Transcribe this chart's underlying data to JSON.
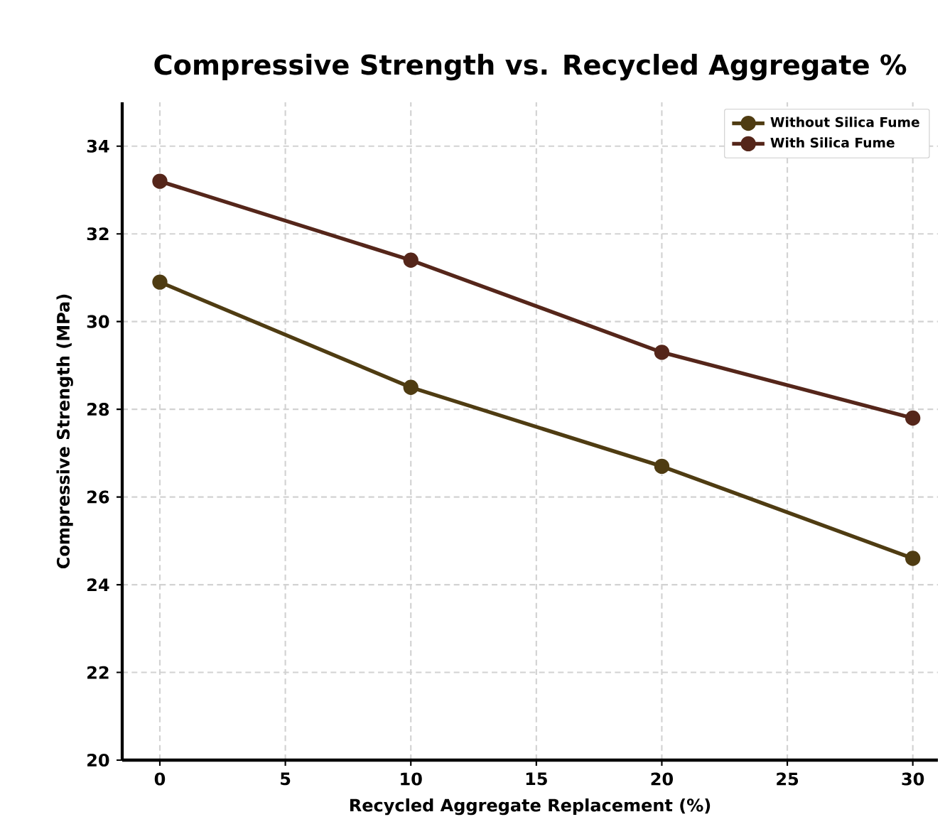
{
  "chart_data": {
    "type": "line",
    "title": "Compressive Strength vs. Recycled Aggregate %",
    "xlabel": "Recycled Aggregate Replacement (%)",
    "ylabel": "Compressive Strength (MPa)",
    "x": [
      0,
      10,
      20,
      30
    ],
    "series": [
      {
        "name": "Without Silica Fume",
        "color": "#4f3c12",
        "values": [
          30.9,
          28.5,
          26.7,
          24.6
        ]
      },
      {
        "name": "With Silica Fume",
        "color": "#55261a",
        "values": [
          33.2,
          31.4,
          29.3,
          27.8
        ]
      }
    ],
    "xlim": [
      -1.5,
      31
    ],
    "ylim": [
      20,
      35
    ],
    "xticks": [
      0,
      5,
      10,
      15,
      20,
      25,
      30
    ],
    "yticks": [
      20,
      22,
      24,
      26,
      28,
      30,
      32,
      34
    ],
    "grid": true,
    "legend": "top right",
    "marker": "circle",
    "line_style": "solid"
  }
}
